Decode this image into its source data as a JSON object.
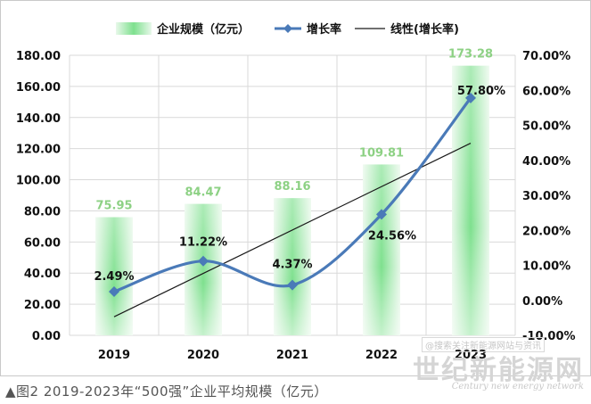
{
  "chart_data": {
    "type": "bar",
    "categories": [
      "2019",
      "2020",
      "2021",
      "2022",
      "2023"
    ],
    "series": [
      {
        "name": "企业规模（亿元）",
        "type": "bar",
        "axis": "left",
        "values": [
          75.95,
          84.47,
          88.16,
          109.81,
          173.28
        ],
        "labels": [
          "75.95",
          "84.47",
          "88.16",
          "109.81",
          "173.28"
        ]
      },
      {
        "name": "增长率",
        "type": "line",
        "axis": "right",
        "smooth": true,
        "values": [
          2.49,
          11.22,
          4.37,
          24.56,
          57.8
        ],
        "labels": [
          "2.49%",
          "11.22%",
          "4.37%",
          "24.56%",
          "57.80%"
        ]
      },
      {
        "name": "线性(增长率)",
        "type": "trendline",
        "axis": "right"
      }
    ],
    "y_left": {
      "min": 0,
      "max": 180,
      "step": 20,
      "ticks": [
        "0.00",
        "20.00",
        "40.00",
        "60.00",
        "80.00",
        "100.00",
        "120.00",
        "140.00",
        "160.00",
        "180.00"
      ]
    },
    "y_right": {
      "min": -10,
      "max": 70,
      "step": 10,
      "ticks": [
        "-10.00%",
        "0.00%",
        "10.00%",
        "20.00%",
        "30.00%",
        "40.00%",
        "50.00%",
        "60.00%",
        "70.00%"
      ]
    },
    "grid": true,
    "legend_position": "top",
    "colors": {
      "bar": "#7ee08e",
      "bar_label": "#8dd184",
      "line": "#4a7ab8",
      "trend": "#1a1a1a"
    }
  },
  "caption": "▲图2 2019-2023年“500强”企业平均规模（亿元）",
  "watermark": {
    "cn": "世纪新能源网",
    "en": "Century new energy network",
    "box": "@搜索关注新能源网站与资讯"
  }
}
